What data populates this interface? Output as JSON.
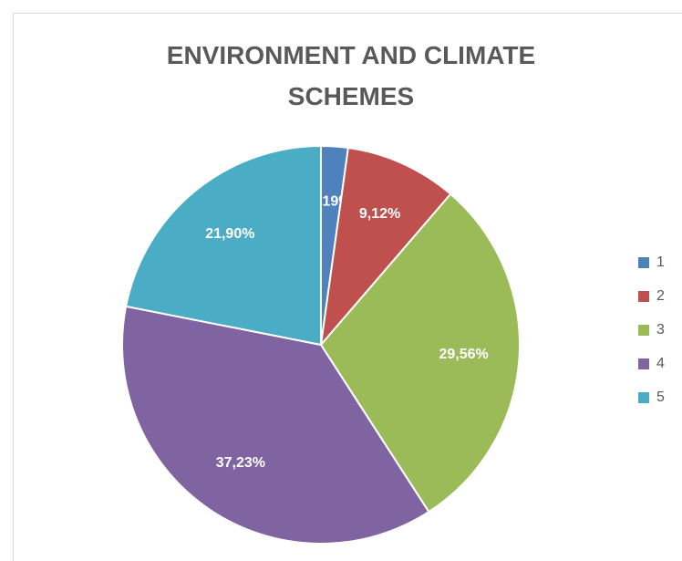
{
  "chart_data": {
    "type": "pie",
    "title": "ENVIRONMENT AND CLIMATE SCHEMES",
    "categories": [
      "1",
      "2",
      "3",
      "4",
      "5"
    ],
    "values": [
      2.19,
      9.12,
      29.56,
      37.23,
      21.9
    ],
    "value_labels": [
      "2,19%",
      "9,12%",
      "29,56%",
      "37,23%",
      "21,90%"
    ],
    "colors": [
      "#4f81bd",
      "#c0504d",
      "#9bbb59",
      "#8064a2",
      "#4bacc6"
    ],
    "legend": "right"
  }
}
